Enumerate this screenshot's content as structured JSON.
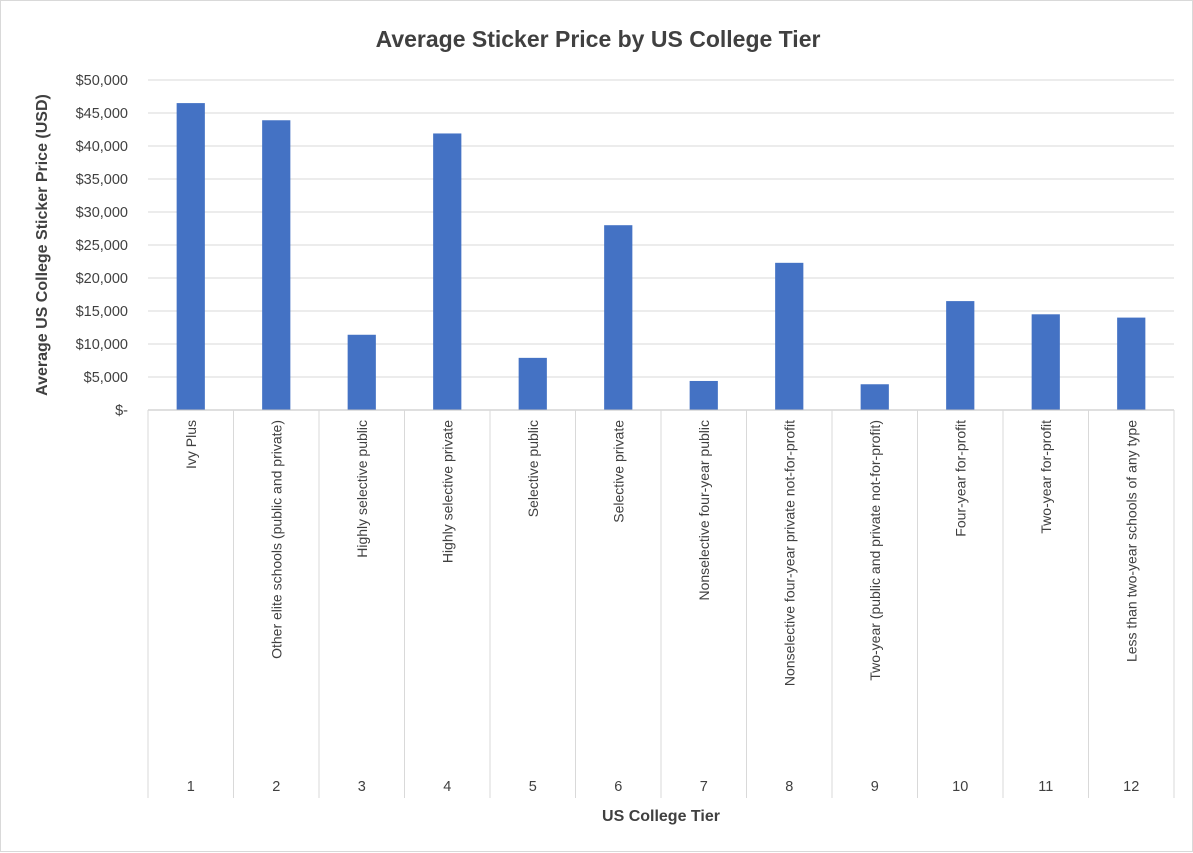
{
  "chart_data": {
    "type": "bar",
    "title": "Average Sticker Price by US College Tier",
    "xlabel": "US College Tier",
    "ylabel": "Average US College Sticker Price (USD)",
    "ylim": [
      0,
      50000
    ],
    "y_ticks": [
      0,
      5000,
      10000,
      15000,
      20000,
      25000,
      30000,
      35000,
      40000,
      45000,
      50000
    ],
    "y_tick_labels": [
      "$-",
      "$5,000",
      "$10,000",
      "$15,000",
      "$20,000",
      "$25,000",
      "$30,000",
      "$35,000",
      "$40,000",
      "$45,000",
      "$50,000"
    ],
    "tiers": [
      "1",
      "2",
      "3",
      "4",
      "5",
      "6",
      "7",
      "8",
      "9",
      "10",
      "11",
      "12"
    ],
    "categories": [
      "Ivy Plus",
      "Other elite schools (public and private)",
      "Highly selective public",
      "Highly selective private",
      "Selective public",
      "Selective private",
      "Nonselective four-year public",
      "Nonselective four-year private not-for-profit",
      "Two-year (public and private not-for-profit)",
      "Four-year for-profit",
      "Two-year for-profit",
      "Less than two-year schools of any type"
    ],
    "values": [
      46500,
      43900,
      11400,
      41900,
      7900,
      28000,
      4400,
      22300,
      3900,
      16500,
      14500,
      14000
    ],
    "grid": true,
    "legend": "none",
    "bar_color": "#4472c4"
  }
}
